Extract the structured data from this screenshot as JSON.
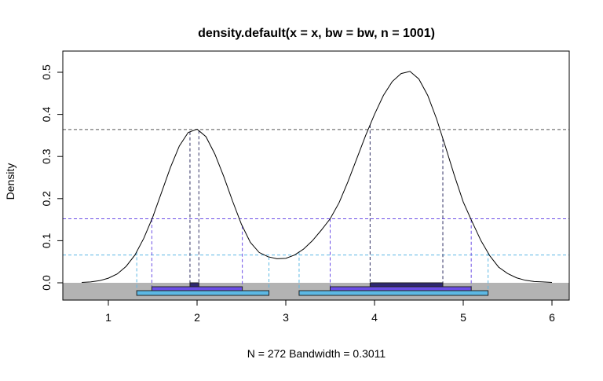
{
  "chart_data": {
    "type": "line",
    "title": "density.default(x = x, bw = bw, n = 1001)",
    "xlabel": "N = 272   Bandwidth = 0.3011",
    "ylabel": "Density",
    "xlim": [
      0.5,
      6.2
    ],
    "ylim": [
      -0.04,
      0.53
    ],
    "x_ticks": [
      "1",
      "2",
      "3",
      "4",
      "5",
      "6"
    ],
    "y_ticks": [
      "0.0",
      "0.1",
      "0.2",
      "0.3",
      "0.4",
      "0.5"
    ],
    "grid": false,
    "curve": {
      "x": [
        0.7,
        0.8,
        0.9,
        1.0,
        1.1,
        1.2,
        1.3,
        1.4,
        1.5,
        1.6,
        1.7,
        1.8,
        1.9,
        2.0,
        2.1,
        2.2,
        2.3,
        2.4,
        2.5,
        2.6,
        2.7,
        2.8,
        2.9,
        3.0,
        3.1,
        3.2,
        3.3,
        3.4,
        3.5,
        3.6,
        3.7,
        3.8,
        3.9,
        4.0,
        4.1,
        4.2,
        4.3,
        4.4,
        4.5,
        4.6,
        4.7,
        4.8,
        4.9,
        5.0,
        5.1,
        5.2,
        5.3,
        5.4,
        5.5,
        5.6,
        5.7,
        5.8,
        5.9,
        6.0
      ],
      "y": [
        0.001,
        0.002,
        0.005,
        0.011,
        0.021,
        0.039,
        0.066,
        0.106,
        0.156,
        0.215,
        0.274,
        0.325,
        0.357,
        0.365,
        0.347,
        0.306,
        0.253,
        0.194,
        0.139,
        0.096,
        0.072,
        0.062,
        0.057,
        0.058,
        0.066,
        0.08,
        0.1,
        0.125,
        0.152,
        0.19,
        0.24,
        0.295,
        0.35,
        0.4,
        0.445,
        0.478,
        0.497,
        0.502,
        0.484,
        0.445,
        0.389,
        0.323,
        0.255,
        0.192,
        0.145,
        0.1,
        0.064,
        0.037,
        0.022,
        0.012,
        0.006,
        0.003,
        0.002,
        0.001
      ]
    },
    "hdr_levels": [
      {
        "density": 0.364,
        "color": "#2e2870",
        "intervals": [
          [
            1.92,
            2.02
          ],
          [
            3.95,
            4.77
          ]
        ]
      },
      {
        "density": 0.152,
        "color": "#6b4ee6",
        "intervals": [
          [
            1.49,
            2.51
          ],
          [
            3.5,
            5.09
          ]
        ]
      },
      {
        "density": 0.066,
        "color": "#5cb8e4",
        "intervals": [
          [
            1.32,
            2.81
          ],
          [
            3.15,
            5.28
          ]
        ]
      }
    ],
    "colors": {
      "curve": "#000000",
      "hdr_band": "#b3b3b3"
    }
  }
}
